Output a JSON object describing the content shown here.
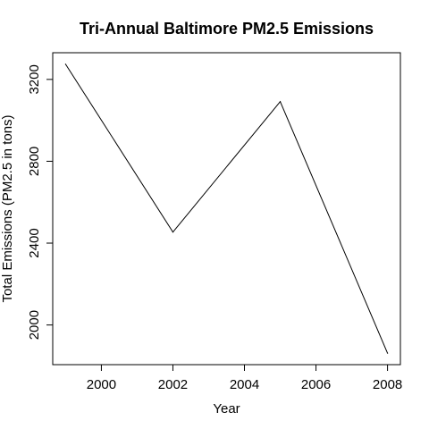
{
  "chart_data": {
    "type": "line",
    "title": "Tri-Annual Baltimore PM2.5 Emissions",
    "xlabel": "Year",
    "ylabel": "Total Emissions (PM2.5 in tons)",
    "x": [
      1999,
      2002,
      2005,
      2008
    ],
    "series": [
      {
        "values": [
          3274.18,
          2453.92,
          3091.35,
          1862.28
        ]
      }
    ],
    "xlim": [
      1998.64,
      2008.36
    ],
    "ylim": [
      1806.12,
      3330.34
    ],
    "xticks": [
      2000,
      2002,
      2004,
      2006,
      2008
    ],
    "yticks": [
      2000,
      2400,
      2800,
      3200
    ],
    "grid": false,
    "line_color": "#000000"
  }
}
